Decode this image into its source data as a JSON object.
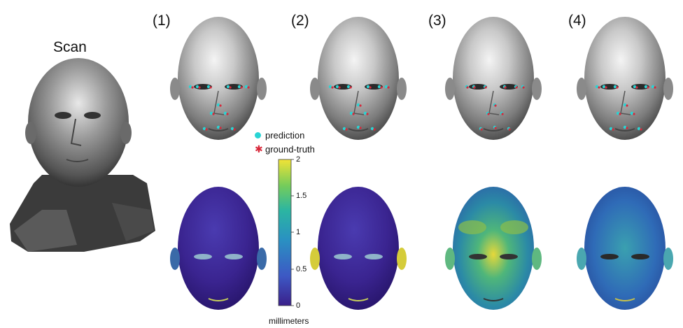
{
  "scan_label": "Scan",
  "column_labels": [
    "(1)",
    "(2)",
    "(3)",
    "(4)"
  ],
  "legend": {
    "prediction": {
      "label": "prediction",
      "color": "#29d4d4"
    },
    "ground_truth": {
      "label": "ground-truth",
      "color": "#d8283a"
    }
  },
  "colorbar": {
    "ticks": [
      "2",
      "1.5",
      "1",
      "0.5",
      "0"
    ],
    "unit": "millimeters",
    "range": [
      0,
      2
    ],
    "colors": [
      "#3a1f8a",
      "#3d58c4",
      "#2a91c2",
      "#2bb5a2",
      "#74cc5b",
      "#f1e336"
    ]
  },
  "error_maps": [
    "low",
    "low",
    "high",
    "medium"
  ]
}
